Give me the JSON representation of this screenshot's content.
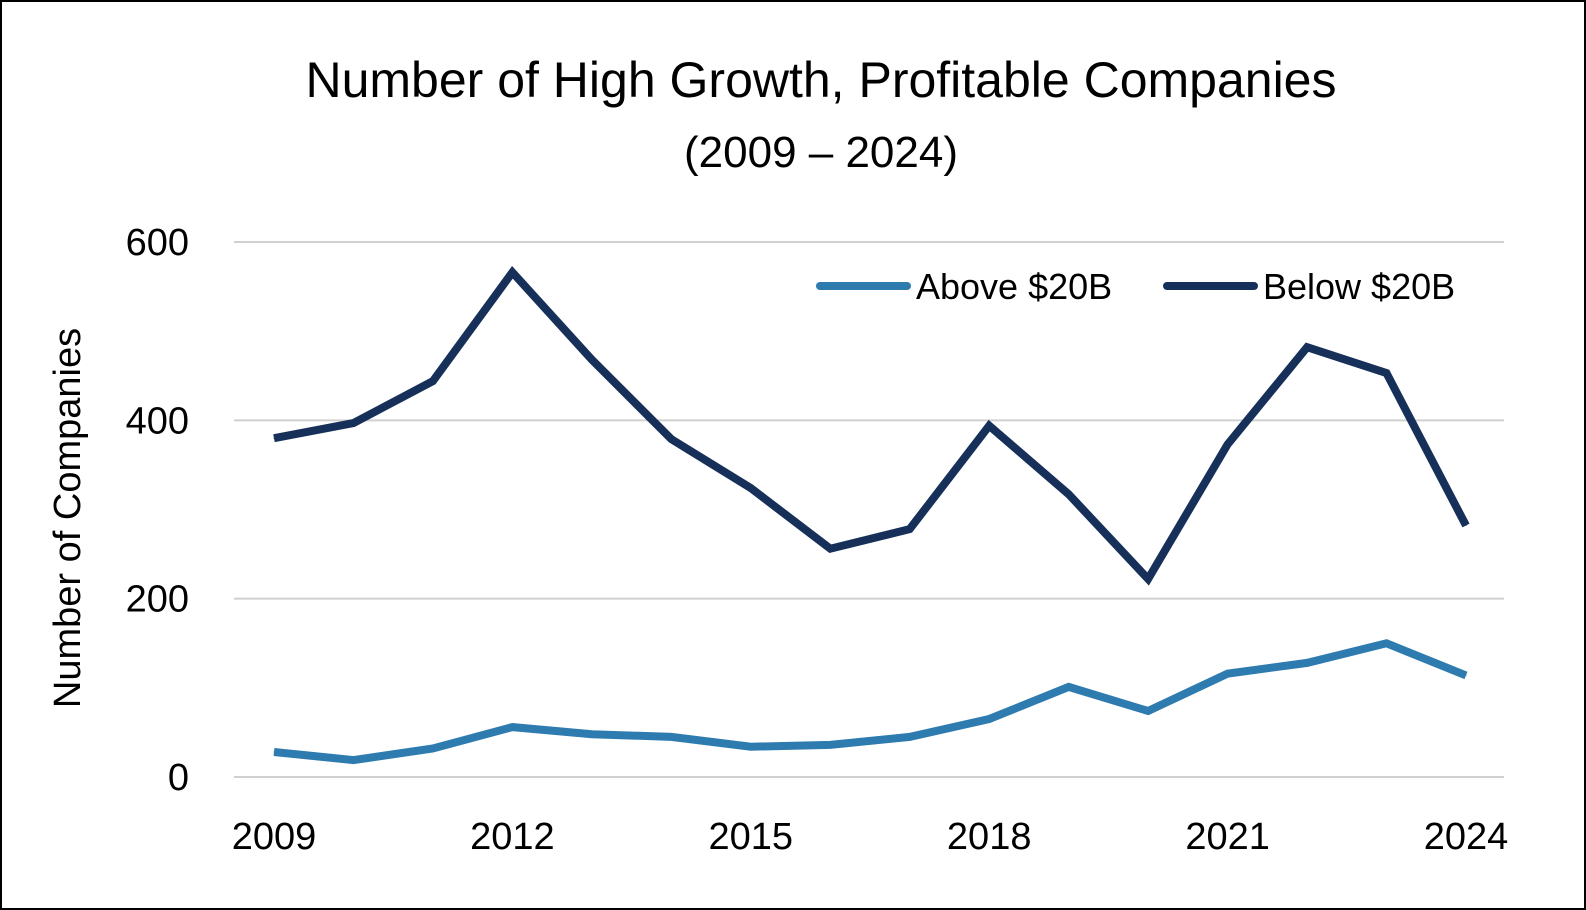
{
  "chart_data": {
    "type": "line",
    "title": "Number of High Growth, Profitable Companies",
    "subtitle": "(2009 – 2024)",
    "xlabel": "",
    "ylabel": "Number of Companies",
    "x": [
      2009,
      2010,
      2011,
      2012,
      2013,
      2014,
      2015,
      2016,
      2017,
      2018,
      2019,
      2020,
      2021,
      2022,
      2023,
      2024
    ],
    "x_tick_labels": [
      "2009",
      "2012",
      "2015",
      "2018",
      "2021",
      "2024"
    ],
    "y_tick_labels": [
      "0",
      "200",
      "400",
      "600"
    ],
    "ylim": [
      0,
      600
    ],
    "grid": true,
    "legend_position": "top-right",
    "series": [
      {
        "name": "Above $20B",
        "color": "#2e7bb0",
        "values": [
          28,
          19,
          32,
          56,
          48,
          45,
          34,
          36,
          45,
          65,
          101,
          74,
          116,
          128,
          150,
          114
        ]
      },
      {
        "name": "Below $20B",
        "color": "#17305a",
        "values": [
          380,
          397,
          444,
          566,
          468,
          379,
          324,
          256,
          278,
          394,
          317,
          222,
          373,
          482,
          453,
          282
        ]
      }
    ]
  }
}
